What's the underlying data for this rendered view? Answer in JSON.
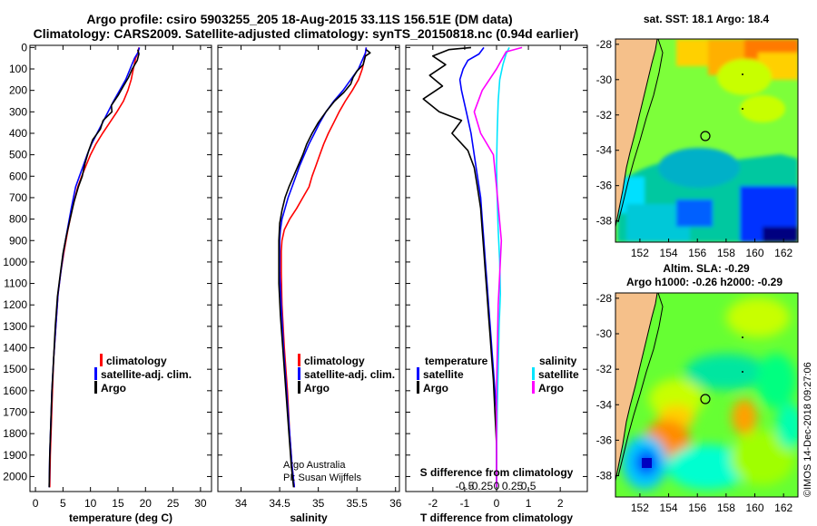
{
  "header": {
    "title_line1": "Argo profile: csiro 5903255_205 18-Aug-2015 33.11S 156.51E (DM data)",
    "title_line2": "Climatology: CARS2009. Satellite-adjusted climatology: synTS_20150818.nc (0.94d earlier)"
  },
  "colors": {
    "climatology": "#ff0000",
    "satellite": "#0000ff",
    "argo": "#000000",
    "sat_salinity": "#00e5ff",
    "argo_salinity": "#ff00ff",
    "land": "#f5c08a"
  },
  "credit": {
    "line1": "Argo Australia",
    "line2": "PI: Susan Wijffels",
    "vertical": "©IMOS 14-Dec-2018 09:27:06"
  },
  "chart_data": [
    {
      "type": "line",
      "id": "temperature-profile",
      "xlabel": "temperature (deg C)",
      "ylabel": "",
      "xlim": [
        -1,
        32
      ],
      "ylim": [
        2070,
        -10
      ],
      "xticks": [
        0,
        5,
        10,
        15,
        20,
        25,
        30
      ],
      "yticks": [
        0,
        100,
        200,
        300,
        400,
        500,
        600,
        700,
        800,
        900,
        1000,
        1100,
        1200,
        1300,
        1400,
        1500,
        1600,
        1700,
        1800,
        1900,
        2000
      ],
      "legend": [
        "climatology",
        "satellite-adj. clim.",
        "Argo"
      ],
      "series": [
        {
          "name": "climatology",
          "color": "#ff0000",
          "x": [
            18.8,
            18.6,
            18.2,
            17.8,
            17.4,
            16.8,
            16.0,
            14.8,
            13.5,
            12.2,
            11.0,
            10.0,
            9.2,
            8.4,
            7.7,
            6.7,
            5.9,
            5.2,
            4.6,
            4.1,
            3.7,
            3.3,
            3.1,
            2.9,
            2.7,
            2.6
          ],
          "y": [
            0,
            25,
            50,
            100,
            150,
            200,
            250,
            300,
            350,
            400,
            450,
            500,
            550,
            600,
            650,
            750,
            850,
            950,
            1050,
            1150,
            1300,
            1450,
            1600,
            1750,
            1900,
            2050
          ]
        },
        {
          "name": "satellite-adj. clim.",
          "color": "#0000ff",
          "x": [
            18.9,
            18.6,
            18.0,
            17.2,
            16.4,
            15.3,
            14.2,
            13.2,
            12.2,
            11.2,
            10.2,
            9.4,
            8.7,
            8.0,
            7.3,
            6.5,
            5.8,
            5.1,
            4.6,
            4.1,
            3.7,
            3.3,
            3.0,
            2.8,
            2.6,
            2.5
          ],
          "y": [
            0,
            25,
            50,
            100,
            150,
            200,
            250,
            300,
            350,
            400,
            450,
            500,
            550,
            600,
            650,
            750,
            850,
            950,
            1050,
            1150,
            1300,
            1450,
            1600,
            1750,
            1900,
            2050
          ]
        },
        {
          "name": "Argo",
          "color": "#000000",
          "x": [
            18.6,
            18.8,
            18.5,
            17.6,
            16.9,
            16.0,
            15.1,
            13.8,
            13.9,
            12.3,
            11.8,
            10.4,
            9.7,
            9.0,
            8.5,
            7.8,
            7.0,
            6.3,
            5.6,
            5.0,
            4.5,
            4.0,
            3.6,
            3.3,
            3.0,
            2.8,
            2.6,
            2.5
          ],
          "y": [
            10,
            30,
            60,
            100,
            140,
            180,
            220,
            270,
            300,
            340,
            380,
            430,
            480,
            540,
            600,
            650,
            720,
            800,
            880,
            960,
            1060,
            1160,
            1300,
            1450,
            1600,
            1750,
            1900,
            2050
          ]
        }
      ]
    },
    {
      "type": "line",
      "id": "salinity-profile",
      "xlabel": "salinity",
      "ylabel": "",
      "xlim": [
        33.7,
        36.05
      ],
      "ylim": [
        2070,
        -10
      ],
      "xticks": [
        34,
        34.5,
        35,
        35.5,
        36
      ],
      "xticklabels": [
        "34",
        "34.5",
        "35",
        "35.5",
        "36"
      ],
      "legend": [
        "climatology",
        "satellite-adj. clim.",
        "Argo"
      ],
      "series": [
        {
          "name": "climatology",
          "color": "#ff0000",
          "x": [
            35.62,
            35.61,
            35.6,
            35.57,
            35.52,
            35.44,
            35.35,
            35.27,
            35.2,
            35.13,
            35.07,
            35.02,
            34.97,
            34.92,
            34.88,
            34.8,
            34.72,
            34.63,
            34.56,
            34.53,
            34.52,
            34.52,
            34.53,
            34.56,
            34.6,
            34.63,
            34.66,
            34.69
          ],
          "y": [
            0,
            25,
            50,
            100,
            150,
            200,
            250,
            300,
            350,
            400,
            450,
            500,
            550,
            600,
            650,
            700,
            750,
            800,
            850,
            900,
            950,
            1050,
            1200,
            1400,
            1600,
            1800,
            1950,
            2050
          ]
        },
        {
          "name": "satellite-adj. clim.",
          "color": "#0000ff",
          "x": [
            35.62,
            35.61,
            35.58,
            35.52,
            35.42,
            35.32,
            35.2,
            35.1,
            35.02,
            34.95,
            34.88,
            34.82,
            34.76,
            34.71,
            34.66,
            34.61,
            34.57,
            34.53,
            34.51,
            34.5,
            34.5,
            34.5,
            34.52,
            34.55,
            34.59,
            34.63,
            34.66,
            34.69
          ],
          "y": [
            0,
            25,
            50,
            100,
            150,
            200,
            250,
            300,
            350,
            400,
            450,
            500,
            550,
            600,
            650,
            700,
            750,
            800,
            850,
            900,
            950,
            1050,
            1200,
            1400,
            1600,
            1800,
            1950,
            2050
          ]
        },
        {
          "name": "Argo",
          "color": "#000000",
          "x": [
            35.62,
            35.67,
            35.61,
            35.58,
            35.5,
            35.45,
            35.42,
            35.33,
            35.21,
            35.1,
            35.0,
            34.92,
            34.85,
            34.8,
            34.74,
            34.68,
            34.62,
            34.57,
            34.53,
            34.5,
            34.49,
            34.49,
            34.49,
            34.51,
            34.54,
            34.58,
            34.62,
            34.65,
            34.68
          ],
          "y": [
            10,
            25,
            40,
            80,
            110,
            140,
            170,
            210,
            250,
            300,
            350,
            400,
            450,
            500,
            550,
            600,
            650,
            700,
            760,
            820,
            900,
            1000,
            1100,
            1250,
            1400,
            1600,
            1800,
            1950,
            2050
          ]
        }
      ]
    },
    {
      "type": "line",
      "id": "difference-profile",
      "xlabel": "T difference from climatology",
      "xlabel2": "S difference from climatology",
      "xlim": [
        -2.85,
        2.85
      ],
      "ylim": [
        2070,
        -10
      ],
      "xticks": [
        -2,
        -1,
        0,
        1,
        2
      ],
      "xticks2": [
        -0.5,
        -0.25,
        0,
        0.25,
        0.5
      ],
      "xticklabels2": [
        "-0.5",
        "-0.25",
        "0",
        "0.25",
        "0.5"
      ],
      "legend_title_left": "temperature",
      "legend_title_right": "salinity",
      "legend": [
        "satellite",
        "Argo",
        "satellite",
        "Argo"
      ],
      "series": [
        {
          "name": "T satellite",
          "color": "#0000ff",
          "x": [
            -0.4,
            -0.55,
            -0.9,
            -1.05,
            -1.15,
            -1.1,
            -0.95,
            -0.8,
            -0.7,
            -0.6,
            -0.5,
            -0.45,
            -0.4,
            -0.35,
            -0.3,
            -0.25,
            -0.2,
            -0.15,
            -0.1,
            -0.05,
            0.0,
            0.0,
            0.0,
            0.0
          ],
          "y": [
            0,
            30,
            60,
            100,
            150,
            200,
            300,
            400,
            500,
            600,
            700,
            800,
            900,
            1000,
            1100,
            1200,
            1300,
            1400,
            1500,
            1600,
            1700,
            1800,
            1900,
            2050
          ]
        },
        {
          "name": "T Argo",
          "color": "#000000",
          "x": [
            -0.8,
            -1.5,
            -2.0,
            -1.6,
            -2.1,
            -1.7,
            -2.3,
            -1.8,
            -1.1,
            -1.4,
            -0.9,
            -0.7,
            -0.6,
            -0.5,
            -0.45,
            -0.4,
            -0.35,
            -0.3,
            -0.25,
            -0.2,
            -0.15,
            -0.1,
            -0.05,
            0.0,
            0.0
          ],
          "y": [
            0,
            10,
            40,
            80,
            130,
            180,
            240,
            300,
            340,
            400,
            480,
            560,
            650,
            750,
            850,
            950,
            1050,
            1150,
            1250,
            1350,
            1450,
            1550,
            1700,
            1850,
            2050
          ]
        },
        {
          "name": "S satellite",
          "color": "#00e5ff",
          "x": [
            0.4,
            0.3,
            0.2,
            0.1,
            0.05,
            0.02,
            0.0,
            0.02,
            0.05,
            0.1,
            0.12,
            0.08,
            0.05,
            0.02,
            0.0,
            0.0
          ],
          "y": [
            0,
            30,
            80,
            150,
            250,
            400,
            550,
            700,
            850,
            1000,
            1150,
            1300,
            1500,
            1700,
            1900,
            2050
          ]
        },
        {
          "name": "S Argo",
          "color": "#ff00ff",
          "x": [
            0.8,
            0.3,
            0.0,
            -0.45,
            -0.7,
            -0.5,
            -0.1,
            0.0,
            0.15,
            0.05,
            0.0,
            0.0
          ],
          "y": [
            0,
            20,
            100,
            200,
            300,
            400,
            500,
            650,
            900,
            1200,
            1600,
            2050
          ]
        }
      ]
    },
    {
      "type": "heatmap",
      "id": "sst-map",
      "title": "sat. SST: 18.1 Argo: 18.4",
      "xlim": [
        150.3,
        163
      ],
      "ylim": [
        -39.2,
        -27.7
      ],
      "xticks": [
        152,
        154,
        156,
        158,
        160,
        162
      ],
      "yticks": [
        -28,
        -30,
        -32,
        -34,
        -36,
        -38
      ],
      "profile_location": {
        "lon": 156.51,
        "lat": -33.11
      }
    },
    {
      "type": "heatmap",
      "id": "sla-map",
      "title": "Altim. SLA: -0.29",
      "subtitle": "Argo h1000: -0.26 h2000: -0.29",
      "xlim": [
        150.3,
        163
      ],
      "ylim": [
        -39.2,
        -27.7
      ],
      "xticks": [
        152,
        154,
        156,
        158,
        160,
        162
      ],
      "yticks": [
        -28,
        -30,
        -32,
        -34,
        -36,
        -38
      ],
      "profile_location": {
        "lon": 156.51,
        "lat": -33.11
      }
    }
  ]
}
